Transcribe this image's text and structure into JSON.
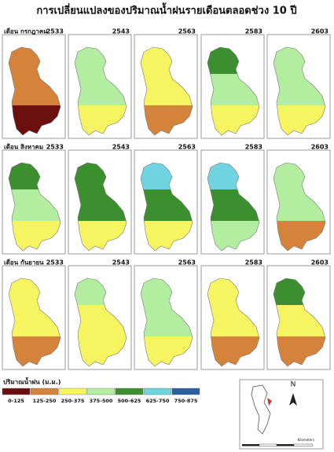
{
  "title": "การเปลี่ยนแปลงของปริมาณน้ำฝนรายเดือนตลอดช่วง 10 ปี",
  "rows": [
    {
      "label": "เดือน กรกฎาคม",
      "panels": [
        {
          "year": "2533",
          "fill": [
            "#d5823a",
            "#d5823a",
            "#6b0f0f"
          ]
        },
        {
          "year": "2543",
          "fill": [
            "#b3eea0",
            "#b3eea0",
            "#f7f462"
          ]
        },
        {
          "year": "2563",
          "fill": [
            "#f7f462",
            "#f7f462",
            "#d5823a"
          ]
        },
        {
          "year": "2583",
          "fill": [
            "#3b8f2f",
            "#b3eea0",
            "#f7f462"
          ]
        },
        {
          "year": "2603",
          "fill": [
            "#b3eea0",
            "#b3eea0",
            "#f7f462"
          ]
        }
      ]
    },
    {
      "label": "เดือน สิงหาคม",
      "panels": [
        {
          "year": "2533",
          "fill": [
            "#3b8f2f",
            "#b3eea0",
            "#f7f462"
          ]
        },
        {
          "year": "2543",
          "fill": [
            "#3b8f2f",
            "#3b8f2f",
            "#f7f462"
          ]
        },
        {
          "year": "2563",
          "fill": [
            "#6fd3e0",
            "#3b8f2f",
            "#f7f462"
          ]
        },
        {
          "year": "2583",
          "fill": [
            "#6fd3e0",
            "#3b8f2f",
            "#b3eea0"
          ]
        },
        {
          "year": "2603",
          "fill": [
            "#b3eea0",
            "#b3eea0",
            "#d5823a"
          ]
        }
      ]
    },
    {
      "label": "เดือน กันยายน",
      "panels": [
        {
          "year": "2533",
          "fill": [
            "#f7f462",
            "#f7f462",
            "#d5823a"
          ]
        },
        {
          "year": "2543",
          "fill": [
            "#b3eea0",
            "#f7f462",
            "#f7f462"
          ]
        },
        {
          "year": "2563",
          "fill": [
            "#b3eea0",
            "#b3eea0",
            "#f7f462"
          ]
        },
        {
          "year": "2583",
          "fill": [
            "#f7f462",
            "#f7f462",
            "#d5823a"
          ]
        },
        {
          "year": "2603",
          "fill": [
            "#3b8f2f",
            "#f7f462",
            "#d5823a"
          ]
        }
      ]
    }
  ],
  "legend": {
    "title": "ปริมาณน้ำฝน (ม.ม.)",
    "items": [
      {
        "label": "0-125",
        "color": "#6b0f0f"
      },
      {
        "label": "125-250",
        "color": "#d5823a"
      },
      {
        "label": "250-375",
        "color": "#f7f462"
      },
      {
        "label": "375-500",
        "color": "#b3eea0"
      },
      {
        "label": "500-625",
        "color": "#3b8f2f"
      },
      {
        "label": "625-750",
        "color": "#6fd3e0"
      },
      {
        "label": "750-875",
        "color": "#2a5fa0"
      }
    ]
  },
  "north": "N",
  "scale": "Kilometers"
}
